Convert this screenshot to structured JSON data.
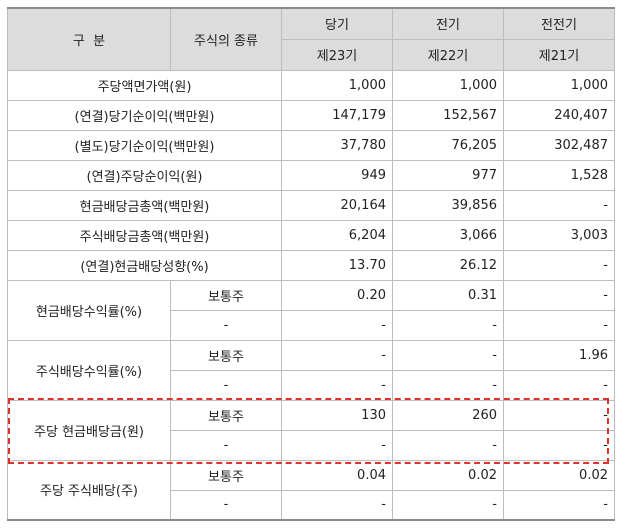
{
  "header": {
    "category": "구  분",
    "stock_type": "주식의 종류",
    "periods": [
      "당기",
      "전기",
      "전전기"
    ],
    "terms": [
      "제23기",
      "제22기",
      "제21기"
    ]
  },
  "rows": [
    {
      "label": "주당액면가액(원)",
      "values": [
        "1,000",
        "1,000",
        "1,000"
      ]
    },
    {
      "label": "(연결)당기순이익(백만원)",
      "values": [
        "147,179",
        "152,567",
        "240,407"
      ]
    },
    {
      "label": "(별도)당기순이익(백만원)",
      "values": [
        "37,780",
        "76,205",
        "302,487"
      ]
    },
    {
      "label": "(연결)주당순이익(원)",
      "values": [
        "949",
        "977",
        "1,528"
      ]
    },
    {
      "label": "현금배당금총액(백만원)",
      "values": [
        "20,164",
        "39,856",
        "-"
      ]
    },
    {
      "label": "주식배당금총액(백만원)",
      "values": [
        "6,204",
        "3,066",
        "3,003"
      ]
    },
    {
      "label": "(연결)현금배당성향(%)",
      "values": [
        "13.70",
        "26.12",
        "-"
      ]
    }
  ],
  "grouped_rows": [
    {
      "label": "현금배당수익률(%)",
      "sub": [
        {
          "type": "보통주",
          "values": [
            "0.20",
            "0.31",
            "-"
          ]
        },
        {
          "type": "-",
          "values": [
            "-",
            "-",
            "-"
          ]
        }
      ]
    },
    {
      "label": "주식배당수익률(%)",
      "sub": [
        {
          "type": "보통주",
          "values": [
            "-",
            "-",
            "1.96"
          ]
        },
        {
          "type": "-",
          "values": [
            "-",
            "-",
            "-"
          ]
        }
      ]
    },
    {
      "label": "주당 현금배당금(원)",
      "sub": [
        {
          "type": "보통주",
          "values": [
            "130",
            "260",
            "-"
          ]
        },
        {
          "type": "-",
          "values": [
            "-",
            "-",
            "-"
          ]
        }
      ]
    },
    {
      "label": "주당 주식배당(주)",
      "sub": [
        {
          "type": "보통주",
          "values": [
            "0.04",
            "0.02",
            "0.02"
          ]
        },
        {
          "type": "-",
          "values": [
            "-",
            "-",
            "-"
          ]
        }
      ]
    }
  ],
  "colors": {
    "header_bg": "#dcdcdc",
    "grid": "#bdbdbd",
    "highlight": "#e0312b"
  }
}
